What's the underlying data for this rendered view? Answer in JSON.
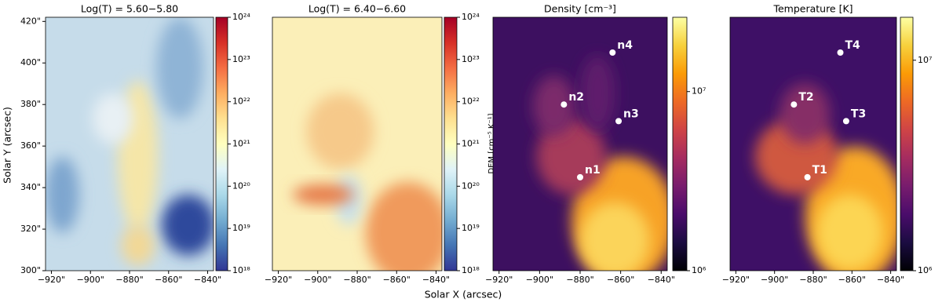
{
  "chart_data": [
    {
      "type": "image",
      "title": "Log(T) = 5.60−5.80",
      "cmap": "RdYlBu_r",
      "ylabel": "Solar Y (arcsec)",
      "xlim": [
        -923,
        -837
      ],
      "ylim": [
        300,
        422
      ],
      "xticks": [
        {
          "value": -920,
          "label": "−920\""
        },
        {
          "value": -900,
          "label": "−900\""
        },
        {
          "value": -880,
          "label": "−880\""
        },
        {
          "value": -860,
          "label": "−860\""
        },
        {
          "value": -840,
          "label": "−840\""
        }
      ],
      "yticks": [
        {
          "value": 300,
          "label": "300\""
        },
        {
          "value": 320,
          "label": "320\""
        },
        {
          "value": 340,
          "label": "340\""
        },
        {
          "value": 360,
          "label": "360\""
        },
        {
          "value": 380,
          "label": "380\""
        },
        {
          "value": 400,
          "label": "400\""
        },
        {
          "value": 420,
          "label": "420\""
        }
      ],
      "clim": [
        1e+18,
        1e+24
      ],
      "log_colorbar": true,
      "cticks": [
        {
          "value": 1e+18,
          "label": "10¹⁸"
        },
        {
          "value": 1e+19,
          "label": "10¹⁹"
        },
        {
          "value": 1e+20,
          "label": "10²⁰"
        },
        {
          "value": 1e+21,
          "label": "10²¹"
        },
        {
          "value": 1e+22,
          "label": "10²²"
        },
        {
          "value": 1e+23,
          "label": "10²³"
        },
        {
          "value": 1e+24,
          "label": "10²⁴"
        }
      ]
    },
    {
      "type": "image",
      "title": "Log(T) = 6.40−6.60",
      "cmap": "RdYlBu_r",
      "xlabel": "Solar X (arcsec)",
      "colorbar_label": "DEM [cm⁻⁵ K⁻¹]",
      "xlim": [
        -923,
        -837
      ],
      "ylim": [
        300,
        422
      ],
      "xticks": [
        {
          "value": -920,
          "label": "−920\""
        },
        {
          "value": -900,
          "label": "−900\""
        },
        {
          "value": -880,
          "label": "−880\""
        },
        {
          "value": -860,
          "label": "−860\""
        },
        {
          "value": -840,
          "label": "−840\""
        }
      ],
      "clim": [
        1e+18,
        1e+24
      ],
      "log_colorbar": true,
      "cticks": [
        {
          "value": 1e+18,
          "label": "10¹⁸"
        },
        {
          "value": 1e+19,
          "label": "10¹⁹"
        },
        {
          "value": 1e+20,
          "label": "10²⁰"
        },
        {
          "value": 1e+21,
          "label": "10²¹"
        },
        {
          "value": 1e+22,
          "label": "10²²"
        },
        {
          "value": 1e+23,
          "label": "10²³"
        },
        {
          "value": 1e+24,
          "label": "10²⁴"
        }
      ]
    },
    {
      "type": "image",
      "title": "Density [cm⁻³]",
      "cmap": "inferno",
      "xlim": [
        -923,
        -837
      ],
      "ylim": [
        300,
        422
      ],
      "xticks": [
        {
          "value": -920,
          "label": "−920\""
        },
        {
          "value": -900,
          "label": "−900\""
        },
        {
          "value": -880,
          "label": "−880\""
        },
        {
          "value": -860,
          "label": "−860\""
        },
        {
          "value": -840,
          "label": "−840\""
        }
      ],
      "clim": [
        1000000.0,
        26000000.0
      ],
      "log_colorbar": true,
      "cticks": [
        {
          "value": 1000000.0,
          "label": "10⁶"
        },
        {
          "value": 10000000.0,
          "label": "10⁷"
        }
      ],
      "points": [
        {
          "label": "n1",
          "x": -880,
          "y": 345
        },
        {
          "label": "n2",
          "x": -888,
          "y": 380
        },
        {
          "label": "n3",
          "x": -861,
          "y": 372
        },
        {
          "label": "n4",
          "x": -864,
          "y": 405
        }
      ]
    },
    {
      "type": "image",
      "title": "Temperature [K]",
      "cmap": "inferno",
      "xlim": [
        -923,
        -837
      ],
      "ylim": [
        300,
        422
      ],
      "xticks": [
        {
          "value": -920,
          "label": "−920\""
        },
        {
          "value": -900,
          "label": "−900\""
        },
        {
          "value": -880,
          "label": "−880\""
        },
        {
          "value": -860,
          "label": "−860\""
        },
        {
          "value": -840,
          "label": "−840\""
        }
      ],
      "clim": [
        1000000.0,
        16000000.0
      ],
      "log_colorbar": true,
      "cticks": [
        {
          "value": 1000000.0,
          "label": "10⁶"
        },
        {
          "value": 10000000.0,
          "label": "10⁷"
        }
      ],
      "points": [
        {
          "label": "T1",
          "x": -883,
          "y": 345
        },
        {
          "label": "T2",
          "x": -890,
          "y": 380
        },
        {
          "label": "T3",
          "x": -863,
          "y": 372
        },
        {
          "label": "T4",
          "x": -866,
          "y": 405
        }
      ]
    }
  ]
}
